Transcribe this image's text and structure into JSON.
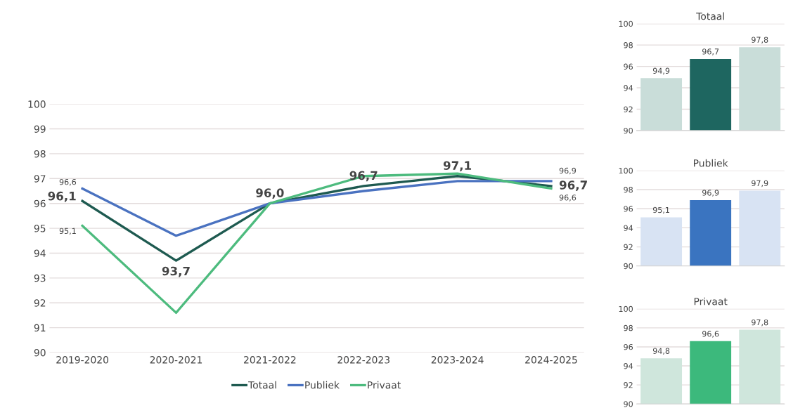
{
  "chart_data": [
    {
      "type": "line",
      "categories": [
        "2019-2020",
        "2020-2021",
        "2021-2022",
        "2022-2023",
        "2023-2024",
        "2024-2025"
      ],
      "ylim": [
        90,
        100
      ],
      "yticks": [
        90,
        91,
        92,
        93,
        94,
        95,
        96,
        97,
        98,
        99,
        100
      ],
      "grid": "y",
      "legend": "bottom",
      "marker": "none",
      "line_style": "solid",
      "series": [
        {
          "name": "Totaal",
          "color": "#1e5a50",
          "values": [
            96.1,
            93.7,
            96.0,
            96.7,
            97.1,
            96.7
          ],
          "value_labels": [
            "96,1",
            "93,7",
            "96,0",
            "96,7",
            "97,1",
            "96,7"
          ]
        },
        {
          "name": "Publiek",
          "color": "#4a72c0",
          "values": [
            96.6,
            94.7,
            96.0,
            96.5,
            96.9,
            96.9
          ],
          "value_labels": [
            "96,6",
            null,
            null,
            null,
            null,
            "96,9"
          ]
        },
        {
          "name": "Privaat",
          "color": "#4dbb7e",
          "values": [
            95.1,
            91.6,
            96.0,
            97.1,
            97.2,
            96.6
          ],
          "value_labels": [
            "95,1",
            null,
            null,
            null,
            null,
            "96,6"
          ]
        }
      ]
    },
    {
      "type": "bar",
      "title": "Totaal",
      "categories": [
        null,
        null,
        null
      ],
      "values": [
        94.9,
        96.7,
        97.8
      ],
      "colors": [
        "#c9ddd9",
        "#1e6660",
        "#c9ddd9"
      ],
      "value_labels": [
        "94,9",
        "96,7",
        "97,8"
      ],
      "ylim": [
        90,
        100
      ],
      "yticks": [
        90,
        92,
        94,
        96,
        98,
        100
      ],
      "grid": "y"
    },
    {
      "type": "bar",
      "title": "Publiek",
      "categories": [
        null,
        null,
        null
      ],
      "values": [
        95.1,
        96.9,
        97.9
      ],
      "colors": [
        "#d8e3f3",
        "#3a74c0",
        "#d8e3f3"
      ],
      "value_labels": [
        "95,1",
        "96,9",
        "97,9"
      ],
      "ylim": [
        90,
        100
      ],
      "yticks": [
        90,
        92,
        94,
        96,
        98,
        100
      ],
      "grid": "y"
    },
    {
      "type": "bar",
      "title": "Privaat",
      "categories": [
        null,
        null,
        null
      ],
      "values": [
        94.8,
        96.6,
        97.8
      ],
      "colors": [
        "#cfe6dc",
        "#3cb97c",
        "#cfe6dc"
      ],
      "value_labels": [
        "94,8",
        "96,6",
        "97,8"
      ],
      "ylim": [
        90,
        100
      ],
      "yticks": [
        90,
        92,
        94,
        96,
        98,
        100
      ],
      "grid": "y"
    }
  ]
}
